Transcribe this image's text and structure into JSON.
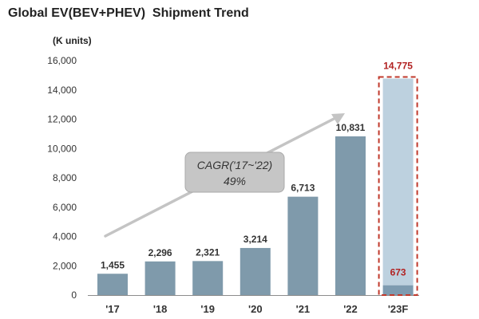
{
  "title": "Global EV(BEV+PHEV)  Shipment Trend",
  "unit": "(K units)",
  "annotation": {
    "line1": "CAGR('17~'22)",
    "line2": "49%"
  },
  "colors": {
    "bar": "#7f9aab",
    "forecast_bar": "#bdd1df",
    "forecast_border": "#c0392b",
    "highlight_text": "#b22222",
    "arrow": "#c4c4c4",
    "callout_fill": "#c6c6c6",
    "axis": "#8c8c8c"
  },
  "chart_data": {
    "type": "bar",
    "categories": [
      "'17",
      "'18",
      "'19",
      "'20",
      "'21",
      "'22",
      "'23F"
    ],
    "values": [
      1455,
      2296,
      2321,
      3214,
      6713,
      10831,
      673
    ],
    "value_labels": [
      "1,455",
      "2,296",
      "2,321",
      "3,214",
      "6,713",
      "10,831",
      "673"
    ],
    "forecast_total": 14775,
    "forecast_total_label": "14,775",
    "yticks": [
      "0",
      "2,000",
      "4,000",
      "6,000",
      "8,000",
      "10,000",
      "12,000",
      "14,000",
      "16,000"
    ],
    "ylim": [
      0,
      16000
    ],
    "grid": false,
    "legend": false
  }
}
